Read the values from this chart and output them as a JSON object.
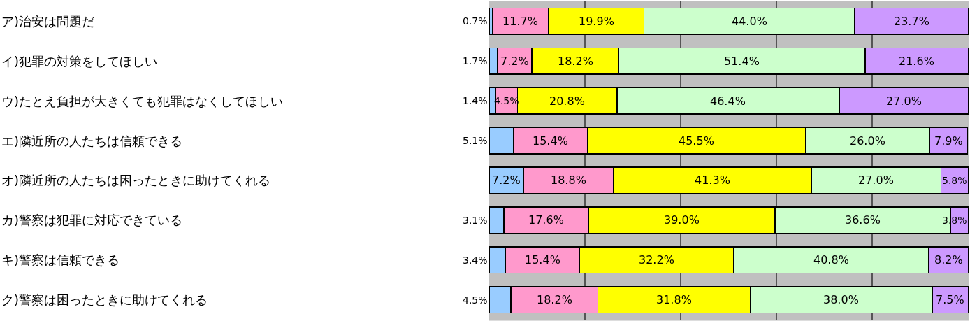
{
  "chart_data": {
    "type": "bar",
    "orientation": "horizontal",
    "stacked": true,
    "categories": [
      "ア)治安は問題だ",
      "イ)犯罪の対策をしてほしい",
      "ウ)たとえ負担が大きくても犯罪はなくしてほしい",
      "エ)隣近所の人たちは信頼できる",
      "オ)隣近所の人たちは困ったときに助けてくれる",
      "カ)警察は犯罪に対応できている",
      "キ)警察は信頼できる",
      "ク)警察は困ったときに助けてくれる"
    ],
    "series": [
      {
        "color": "#99ccff",
        "values": [
          0.7,
          1.7,
          1.4,
          5.1,
          7.2,
          3.1,
          3.4,
          4.5
        ],
        "value_labels": [
          "0.7%",
          "1.7%",
          "1.4%",
          "5.1%",
          "7.2%",
          "3.1%",
          "3.4%",
          "4.5%"
        ]
      },
      {
        "color": "#ff99cc",
        "values": [
          11.7,
          7.2,
          4.5,
          15.4,
          18.8,
          17.6,
          15.4,
          18.2
        ],
        "value_labels": [
          "11.7%",
          "7.2%",
          "4.5%",
          "15.4%",
          "18.8%",
          "17.6%",
          "15.4%",
          "18.2%"
        ]
      },
      {
        "color": "#ffff00",
        "values": [
          19.9,
          18.2,
          20.8,
          45.5,
          41.3,
          39.0,
          32.2,
          31.8
        ],
        "value_labels": [
          "19.9%",
          "18.2%",
          "20.8%",
          "45.5%",
          "41.3%",
          "39.0%",
          "32.2%",
          "31.8%"
        ]
      },
      {
        "color": "#ccffcc",
        "values": [
          44.0,
          51.4,
          46.4,
          26.0,
          27.0,
          36.6,
          40.8,
          38.0
        ],
        "value_labels": [
          "44.0%",
          "51.4%",
          "46.4%",
          "26.0%",
          "27.0%",
          "36.6%",
          "40.8%",
          "38.0%"
        ]
      },
      {
        "color": "#cc99ff",
        "values": [
          23.7,
          21.6,
          27.0,
          7.9,
          5.8,
          3.8,
          8.2,
          7.5
        ],
        "value_labels": [
          "23.7%",
          "21.6%",
          "27.0%",
          "7.9%",
          "5.8%",
          "3.8%",
          "8.2%",
          "7.5%"
        ]
      }
    ],
    "xlim": [
      0,
      100.1
    ],
    "xticks": [
      {
        "value": 0,
        "label": null
      },
      {
        "value": 20,
        "label": null
      },
      {
        "value": 40,
        "label": null
      },
      {
        "value": 60,
        "label": null
      },
      {
        "value": 80,
        "label": null
      },
      {
        "value": 100,
        "label": null
      }
    ],
    "grid": "x",
    "tick_labels": "y"
  }
}
